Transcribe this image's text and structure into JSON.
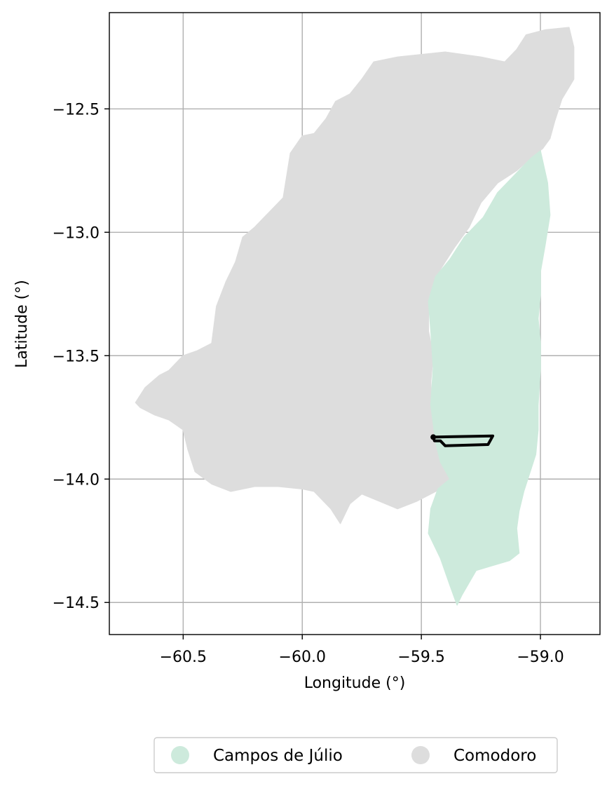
{
  "map": {
    "xlabel": "Longitude (°)",
    "ylabel": "Latitude (°)",
    "xlim": [
      -60.81,
      -58.75
    ],
    "ylim": [
      -14.63,
      -12.11
    ],
    "xticks": [
      -60.5,
      -60.0,
      -59.5,
      -59.0
    ],
    "yticks": [
      -12.5,
      -13.0,
      -13.5,
      -14.0,
      -14.5
    ],
    "xtick_labels": [
      "−60.5",
      "−60.0",
      "−59.5",
      "−59.0"
    ],
    "ytick_labels": [
      "−12.5",
      "−13.0",
      "−13.5",
      "−14.0",
      "−14.5"
    ],
    "grid": true,
    "legend_position": "bottom-center",
    "colors": {
      "comodoro": "#dddddd",
      "campos_de_julio": "#cdeadc",
      "outline": "#000000",
      "grid": "#b0b0b0"
    }
  },
  "legend": {
    "items": [
      {
        "label": "Campos de Júlio",
        "color": "#cdeadc"
      },
      {
        "label": "Comodoro",
        "color": "#dddddd"
      }
    ]
  },
  "regions": {
    "comodoro": [
      [
        -60.7,
        -13.69
      ],
      [
        -60.66,
        -13.63
      ],
      [
        -60.6,
        -13.58
      ],
      [
        -60.56,
        -13.56
      ],
      [
        -60.5,
        -13.5
      ],
      [
        -60.44,
        -13.48
      ],
      [
        -60.38,
        -13.45
      ],
      [
        -60.36,
        -13.3
      ],
      [
        -60.32,
        -13.2
      ],
      [
        -60.28,
        -13.12
      ],
      [
        -60.25,
        -13.02
      ],
      [
        -60.2,
        -12.98
      ],
      [
        -60.14,
        -12.92
      ],
      [
        -60.08,
        -12.86
      ],
      [
        -60.05,
        -12.68
      ],
      [
        -60.0,
        -12.61
      ],
      [
        -59.95,
        -12.6
      ],
      [
        -59.9,
        -12.54
      ],
      [
        -59.86,
        -12.47
      ],
      [
        -59.8,
        -12.44
      ],
      [
        -59.75,
        -12.38
      ],
      [
        -59.7,
        -12.31
      ],
      [
        -59.6,
        -12.29
      ],
      [
        -59.4,
        -12.27
      ],
      [
        -59.25,
        -12.29
      ],
      [
        -59.15,
        -12.31
      ],
      [
        -59.1,
        -12.26
      ],
      [
        -59.06,
        -12.2
      ],
      [
        -58.98,
        -12.18
      ],
      [
        -58.88,
        -12.17
      ],
      [
        -58.86,
        -12.25
      ],
      [
        -58.86,
        -12.38
      ],
      [
        -58.91,
        -12.46
      ],
      [
        -58.94,
        -12.55
      ],
      [
        -58.96,
        -12.62
      ],
      [
        -58.99,
        -12.66
      ],
      [
        -59.03,
        -12.69
      ],
      [
        -59.1,
        -12.75
      ],
      [
        -59.18,
        -12.8
      ],
      [
        -59.25,
        -12.88
      ],
      [
        -59.3,
        -12.98
      ],
      [
        -59.36,
        -13.06
      ],
      [
        -59.44,
        -13.18
      ],
      [
        -59.47,
        -13.28
      ],
      [
        -59.47,
        -13.4
      ],
      [
        -59.45,
        -13.5
      ],
      [
        -59.46,
        -13.6
      ],
      [
        -59.46,
        -13.7
      ],
      [
        -59.43,
        -13.8
      ],
      [
        -59.4,
        -13.9
      ],
      [
        -59.37,
        -14.0
      ],
      [
        -59.42,
        -14.04
      ],
      [
        -59.52,
        -14.09
      ],
      [
        -59.6,
        -14.12
      ],
      [
        -59.7,
        -14.08
      ],
      [
        -59.75,
        -14.06
      ],
      [
        -59.8,
        -14.1
      ],
      [
        -59.84,
        -14.18
      ],
      [
        -59.88,
        -14.12
      ],
      [
        -59.95,
        -14.05
      ],
      [
        -60.0,
        -14.04
      ],
      [
        -60.1,
        -14.03
      ],
      [
        -60.2,
        -14.03
      ],
      [
        -60.3,
        -14.05
      ],
      [
        -60.38,
        -14.02
      ],
      [
        -60.45,
        -13.97
      ],
      [
        -60.48,
        -13.88
      ],
      [
        -60.5,
        -13.8
      ],
      [
        -60.56,
        -13.76
      ],
      [
        -60.62,
        -13.74
      ],
      [
        -60.68,
        -13.71
      ]
    ],
    "campos_de_julio": [
      [
        -59.0,
        -12.67
      ],
      [
        -58.97,
        -12.8
      ],
      [
        -58.96,
        -12.93
      ],
      [
        -58.98,
        -13.05
      ],
      [
        -59.0,
        -13.16
      ],
      [
        -59.0,
        -13.25
      ],
      [
        -59.01,
        -13.35
      ],
      [
        -59.0,
        -13.45
      ],
      [
        -59.0,
        -13.55
      ],
      [
        -59.01,
        -13.7
      ],
      [
        -59.01,
        -13.8
      ],
      [
        -59.02,
        -13.9
      ],
      [
        -59.07,
        -14.05
      ],
      [
        -59.09,
        -14.13
      ],
      [
        -59.1,
        -14.2
      ],
      [
        -59.09,
        -14.3
      ],
      [
        -59.13,
        -14.33
      ],
      [
        -59.2,
        -14.35
      ],
      [
        -59.27,
        -14.37
      ],
      [
        -59.3,
        -14.42
      ],
      [
        -59.33,
        -14.47
      ],
      [
        -59.35,
        -14.51
      ],
      [
        -59.38,
        -14.43
      ],
      [
        -59.42,
        -14.32
      ],
      [
        -59.47,
        -14.22
      ],
      [
        -59.46,
        -14.12
      ],
      [
        -59.43,
        -14.04
      ],
      [
        -59.38,
        -14.0
      ],
      [
        -59.42,
        -13.93
      ],
      [
        -59.44,
        -13.85
      ],
      [
        -59.46,
        -13.7
      ],
      [
        -59.45,
        -13.55
      ],
      [
        -59.46,
        -13.4
      ],
      [
        -59.47,
        -13.28
      ],
      [
        -59.44,
        -13.18
      ],
      [
        -59.38,
        -13.11
      ],
      [
        -59.32,
        -13.02
      ],
      [
        -59.24,
        -12.94
      ],
      [
        -59.18,
        -12.84
      ],
      [
        -59.1,
        -12.76
      ],
      [
        -59.04,
        -12.7
      ]
    ],
    "outline": [
      [
        -59.45,
        -13.83
      ],
      [
        -59.2,
        -13.825
      ],
      [
        -59.22,
        -13.86
      ],
      [
        -59.4,
        -13.865
      ],
      [
        -59.42,
        -13.845
      ],
      [
        -59.445,
        -13.845
      ]
    ]
  }
}
